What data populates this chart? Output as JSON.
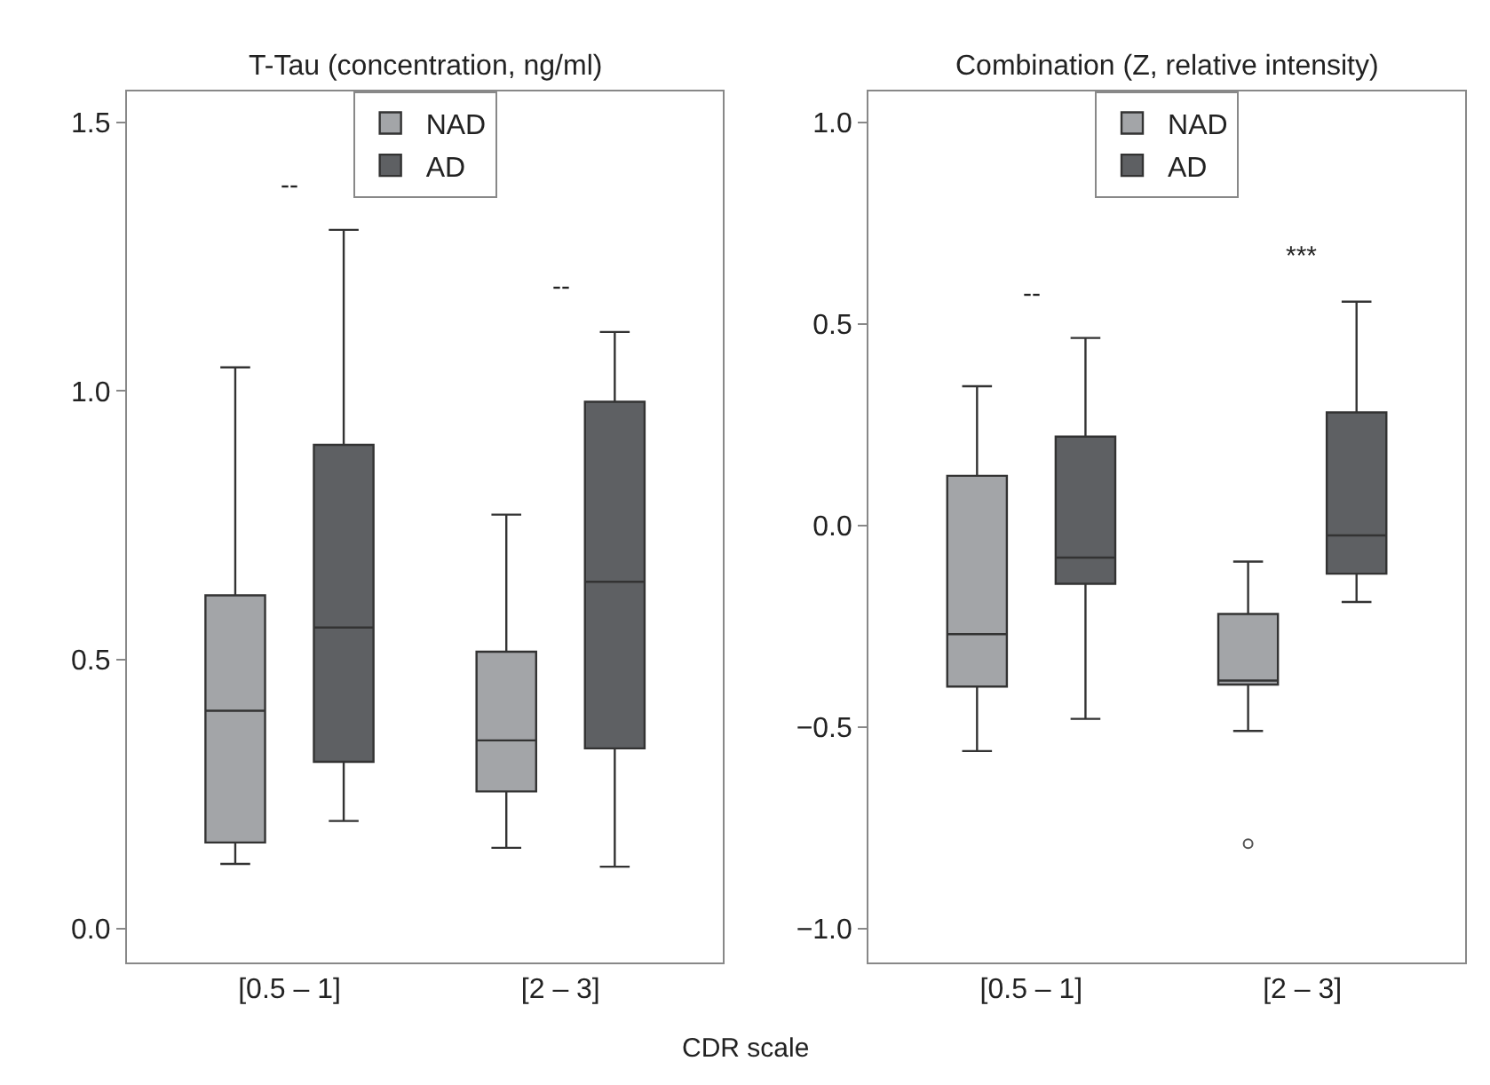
{
  "chart_data": [
    {
      "type": "box",
      "title": "T-Tau (concentration, ng/ml)",
      "xlabel": "CDR scale",
      "categories": [
        "[0.5 – 1]",
        "[2 – 3]"
      ],
      "ylim": [
        -0.063,
        1.558
      ],
      "yticks": [
        {
          "value": 0,
          "label": "0.0"
        },
        {
          "value": 0.5,
          "label": "0.5"
        },
        {
          "value": 1,
          "label": "1.0"
        },
        {
          "value": 1.5,
          "label": "1.5"
        }
      ],
      "legend": "top",
      "series": [
        {
          "name": "NAD",
          "color": "#a3a5a8",
          "boxes": [
            {
              "low": 0.12,
              "q1": 0.16,
              "median": 0.405,
              "q3": 0.62,
              "high": 1.044
            },
            {
              "low": 0.15,
              "q1": 0.255,
              "median": 0.35,
              "q3": 0.515,
              "high": 0.77
            }
          ]
        },
        {
          "name": "AD",
          "color": "#5e6063",
          "boxes": [
            {
              "low": 0.2,
              "q1": 0.31,
              "median": 0.56,
              "q3": 0.9,
              "high": 1.3
            },
            {
              "low": 0.115,
              "q1": 0.335,
              "median": 0.645,
              "q3": 0.98,
              "high": 1.11
            }
          ]
        }
      ],
      "annotations": [
        "--",
        "--"
      ]
    },
    {
      "type": "box",
      "title": "Combination (Z, relative intensity)",
      "categories": [
        "[0.5 – 1]",
        "[2 – 3]"
      ],
      "ylim": [
        -1.084,
        1.077
      ],
      "yticks": [
        {
          "value": -1.0,
          "label": "−1.0"
        },
        {
          "value": -0.5,
          "label": "−0.5"
        },
        {
          "value": 0,
          "label": "0.0"
        },
        {
          "value": 0.5,
          "label": "0.5"
        },
        {
          "value": 1,
          "label": "1.0"
        }
      ],
      "legend": "top",
      "series": [
        {
          "name": "NAD",
          "color": "#a3a5a8",
          "boxes": [
            {
              "low": -0.56,
              "q1": -0.4,
              "median": -0.27,
              "q3": 0.123,
              "high": 0.345
            },
            {
              "low": -0.51,
              "q1": -0.395,
              "median": -0.385,
              "q3": -0.22,
              "high": -0.09,
              "outliers": [
                -0.79
              ]
            }
          ]
        },
        {
          "name": "AD",
          "color": "#5e6063",
          "boxes": [
            {
              "low": -0.48,
              "q1": -0.145,
              "median": -0.08,
              "q3": 0.22,
              "high": 0.465
            },
            {
              "low": -0.19,
              "q1": -0.12,
              "median": -0.025,
              "q3": 0.28,
              "high": 0.555
            }
          ]
        }
      ],
      "annotations": [
        "--",
        "***"
      ]
    }
  ]
}
